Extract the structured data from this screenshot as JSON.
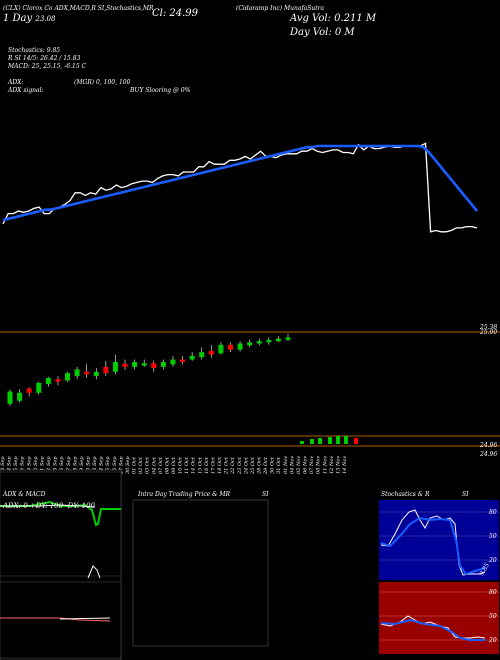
{
  "header": {
    "line1": "(CLX) Clorox Co ADX,MACD,R",
    "line1_cont": "SI,Stochastics,MR",
    "cl_label": "Cl: 24.99",
    "title": "(Cidaramp Inc) MunafaSutra",
    "avg_vol": "Avg Vol: 0.211 M",
    "day_vol": "Day Vol: 0   M",
    "day_label": "1 Day  ",
    "date_code": "23.08",
    "stochastics": "Stochastics: 9.85",
    "rsi": "R          SI 14/5: 26.42  / 15.83",
    "macd": "MACD: 25,  25.15,  -6.15 C",
    "adx": "ADX:",
    "mgr": "(MGR) 0,  100,  100",
    "adx_signal": "ADX  signal:",
    "buy_signal": "BUY Slooring @ 0%"
  },
  "price_axis": {
    "top_a": "25.38",
    "top_b": "25.00",
    "low_a": "24.96",
    "low_b": "24.96"
  },
  "x_labels": [
    "03 Sep",
    "04 Sep",
    "05 Sep",
    "06 Sep",
    "09 Sep",
    "10 Sep",
    "11 Sep",
    "12 Sep",
    "13 Sep",
    "16 Sep",
    "17 Sep",
    "18 Sep",
    "19 Sep",
    "20 Sep",
    "23 Sep",
    "24 Sep",
    "25 Sep",
    "26 Sep",
    "27 Sep",
    "30 Sep",
    "01 Oct",
    "02 Oct",
    "03 Oct",
    "04 Oct",
    "07 Oct",
    "08 Oct",
    "09 Oct",
    "10 Oct",
    "11 Oct",
    "14 Oct",
    "15 Oct",
    "16 Oct",
    "17 Oct",
    "18 Oct",
    "21 Oct",
    "22 Oct",
    "23 Oct",
    "24 Oct",
    "25 Oct",
    "28 Oct",
    "29 Oct",
    "30 Oct",
    "31 Oct",
    "01 Nov",
    "04 Nov",
    "05 Nov",
    "06 Nov",
    "07 Nov",
    "08 Nov",
    "11 Nov",
    "12 Nov",
    "13 Nov",
    "14 Nov"
  ],
  "panels": {
    "adx_title": "ADX  & MACD",
    "adx_readout": "ADX: 0  +DY: 100  -DY: 100",
    "intra_title": "Intra  Day Trading Price  & MR",
    "intra_si": "SI",
    "stoch_title": "Stochastics & R",
    "stoch_si": "SI",
    "stoch_ticks": [
      "80",
      "50",
      "20"
    ],
    "rsi_ticks": [
      "80",
      "50",
      "20"
    ],
    "stoch_end_label": "9.85"
  },
  "colors": {
    "up": "#00cc00",
    "down": "#ff0000",
    "blue": "#1a5cff",
    "orange": "#b35c00",
    "maroon": "#990000",
    "navy": "#000099"
  },
  "chart_data": {
    "type": "line",
    "series": [
      {
        "values": [
          0.2,
          0.28,
          0.28,
          0.3,
          0.29,
          0.3,
          0.32,
          0.33,
          0.28,
          0.28,
          0.32,
          0.33,
          0.35,
          0.38,
          0.44,
          0.44,
          0.42,
          0.44,
          0.43,
          0.48,
          0.46,
          0.47,
          0.5,
          0.48,
          0.49,
          0.51,
          0.52,
          0.53,
          0.53,
          0.52,
          0.55,
          0.57,
          0.58,
          0.58,
          0.57,
          0.6,
          0.6,
          0.6,
          0.64,
          0.64,
          0.68,
          0.66,
          0.66,
          0.66,
          0.69,
          0.69,
          0.7,
          0.72,
          0.7,
          0.73,
          0.76,
          0.72,
          0.72,
          0.71,
          0.73,
          0.74,
          0.74,
          0.74,
          0.76,
          0.76,
          0.78,
          0.76,
          0.75,
          0.76,
          0.77,
          0.77,
          0.75,
          0.75,
          0.74,
          0.81,
          0.77,
          0.8,
          0.78,
          0.78,
          0.79,
          0.8,
          0.79,
          0.79,
          0.8,
          0.8,
          0.8,
          0.8,
          0.82,
          0.14,
          0.15,
          0.14,
          0.14,
          0.15,
          0.17,
          0.17,
          0.18,
          0.18,
          0.17
        ]
      },
      {
        "values": [
          0.23,
          0.24,
          0.25,
          0.26,
          0.27,
          0.28,
          0.29,
          0.3,
          0.31,
          0.31,
          0.32,
          0.33,
          0.34,
          0.35,
          0.36,
          0.37,
          0.38,
          0.39,
          0.4,
          0.41,
          0.42,
          0.43,
          0.44,
          0.45,
          0.46,
          0.47,
          0.48,
          0.49,
          0.5,
          0.51,
          0.52,
          0.53,
          0.54,
          0.55,
          0.56,
          0.57,
          0.58,
          0.59,
          0.6,
          0.61,
          0.62,
          0.63,
          0.64,
          0.65,
          0.66,
          0.67,
          0.68,
          0.69,
          0.7,
          0.71,
          0.72,
          0.73,
          0.74,
          0.75,
          0.76,
          0.77,
          0.78,
          0.79,
          0.79,
          0.8,
          0.8,
          0.8,
          0.8,
          0.8,
          0.8,
          0.8,
          0.8,
          0.8,
          0.8,
          0.8,
          0.8,
          0.8,
          0.8,
          0.8,
          0.8,
          0.8,
          0.8,
          0.8,
          0.8,
          0.79,
          0.75,
          0.7,
          0.65,
          0.6,
          0.55,
          0.5,
          0.45,
          0.4,
          0.35,
          0.3
        ]
      }
    ],
    "candles": [
      {
        "o": 24.1,
        "c": 24.3,
        "h": 24.33,
        "l": 24.07
      },
      {
        "o": 24.15,
        "c": 24.28,
        "h": 24.34,
        "l": 24.12
      },
      {
        "o": 24.35,
        "c": 24.28,
        "h": 24.37,
        "l": 24.22
      },
      {
        "o": 24.28,
        "c": 24.44,
        "h": 24.46,
        "l": 24.25
      },
      {
        "o": 24.42,
        "c": 24.52,
        "h": 24.54,
        "l": 24.38
      },
      {
        "o": 24.5,
        "c": 24.46,
        "h": 24.55,
        "l": 24.4
      },
      {
        "o": 24.48,
        "c": 24.6,
        "h": 24.62,
        "l": 24.45
      },
      {
        "o": 24.55,
        "c": 24.66,
        "h": 24.7,
        "l": 24.5
      },
      {
        "o": 24.62,
        "c": 24.58,
        "h": 24.75,
        "l": 24.52
      },
      {
        "o": 24.55,
        "c": 24.62,
        "h": 24.68,
        "l": 24.5
      },
      {
        "o": 24.7,
        "c": 24.6,
        "h": 24.8,
        "l": 24.55
      },
      {
        "o": 24.62,
        "c": 24.78,
        "h": 24.9,
        "l": 24.58
      },
      {
        "o": 24.75,
        "c": 24.7,
        "h": 24.82,
        "l": 24.65
      },
      {
        "o": 24.7,
        "c": 24.78,
        "h": 24.82,
        "l": 24.66
      },
      {
        "o": 24.72,
        "c": 24.76,
        "h": 24.82,
        "l": 24.7
      },
      {
        "o": 24.76,
        "c": 24.68,
        "h": 24.8,
        "l": 24.62
      },
      {
        "o": 24.7,
        "c": 24.78,
        "h": 24.82,
        "l": 24.66
      },
      {
        "o": 24.74,
        "c": 24.82,
        "h": 24.88,
        "l": 24.7
      },
      {
        "o": 24.82,
        "c": 24.78,
        "h": 24.88,
        "l": 24.74
      },
      {
        "o": 24.82,
        "c": 24.88,
        "h": 24.94,
        "l": 24.8
      },
      {
        "o": 24.86,
        "c": 24.94,
        "h": 25.02,
        "l": 24.82
      },
      {
        "o": 24.96,
        "c": 24.9,
        "h": 25.05,
        "l": 24.85
      },
      {
        "o": 24.92,
        "c": 25.06,
        "h": 25.1,
        "l": 24.9
      },
      {
        "o": 25.06,
        "c": 24.98,
        "h": 25.1,
        "l": 24.94
      },
      {
        "o": 24.98,
        "c": 25.08,
        "h": 25.12,
        "l": 24.95
      },
      {
        "o": 25.05,
        "c": 25.1,
        "h": 25.14,
        "l": 25.02
      },
      {
        "o": 25.08,
        "c": 25.12,
        "h": 25.16,
        "l": 25.05
      },
      {
        "o": 25.1,
        "c": 25.14,
        "h": 25.18,
        "l": 25.06
      },
      {
        "o": 25.12,
        "c": 25.16,
        "h": 25.2,
        "l": 25.1
      },
      {
        "o": 25.14,
        "c": 25.18,
        "h": 25.24,
        "l": 25.12
      }
    ]
  }
}
